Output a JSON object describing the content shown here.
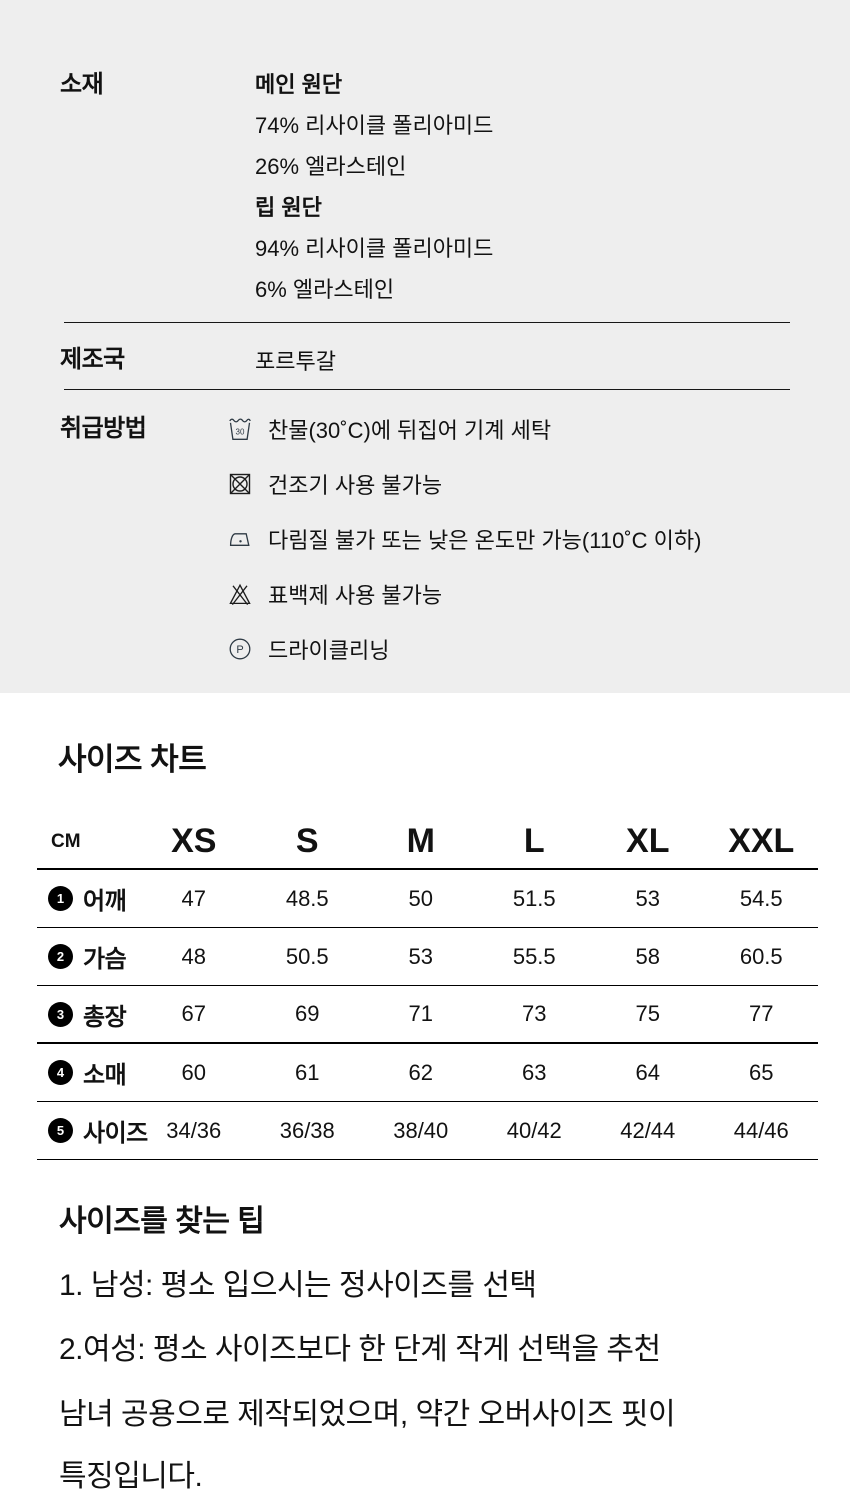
{
  "specs": {
    "material": {
      "label": "소재",
      "lines": [
        {
          "text": "메인 원단",
          "bold": true
        },
        {
          "text": "74% 리사이클 폴리아미드",
          "bold": false
        },
        {
          "text": "26% 엘라스테인",
          "bold": false
        },
        {
          "text": "립 원단",
          "bold": true
        },
        {
          "text": "94% 리사이클 폴리아미드",
          "bold": false
        },
        {
          "text": "6% 엘라스테인",
          "bold": false
        }
      ]
    },
    "origin": {
      "label": "제조국",
      "value": "포르투갈"
    },
    "care": {
      "label": "취급방법",
      "items": [
        {
          "icon": "machine-wash-30-icon",
          "text": "찬물(30˚C)에 뒤집어 기계 세탁"
        },
        {
          "icon": "no-tumble-dry-icon",
          "text": "건조기 사용 불가능"
        },
        {
          "icon": "iron-low-icon",
          "text": "다림질 불가 또는 낮은 온도만 가능(110˚C 이하)"
        },
        {
          "icon": "no-bleach-icon",
          "text": "표백제 사용 불가능"
        },
        {
          "icon": "dry-clean-icon",
          "text": "드라이클리닝"
        }
      ]
    }
  },
  "size_chart": {
    "title": "사이즈 차트",
    "unit": "CM",
    "columns": [
      "XS",
      "S",
      "M",
      "L",
      "XL",
      "XXL"
    ],
    "rows": [
      {
        "num": "1",
        "label": "어깨",
        "values": [
          "47",
          "48.5",
          "50",
          "51.5",
          "53",
          "54.5"
        ]
      },
      {
        "num": "2",
        "label": "가슴",
        "values": [
          "48",
          "50.5",
          "53",
          "55.5",
          "58",
          "60.5"
        ]
      },
      {
        "num": "3",
        "label": "총장",
        "values": [
          "67",
          "69",
          "71",
          "73",
          "75",
          "77"
        ]
      },
      {
        "num": "4",
        "label": "소매",
        "values": [
          "60",
          "61",
          "62",
          "63",
          "64",
          "65"
        ]
      },
      {
        "num": "5",
        "label": "사이즈",
        "values": [
          "34/36",
          "36/38",
          "38/40",
          "40/42",
          "42/44",
          "44/46"
        ]
      }
    ]
  },
  "tips": {
    "title": "사이즈를 찾는 팁",
    "lines": [
      "1. 남성: 평소 입으시는 정사이즈를 선택",
      "2.여성: 평소 사이즈보다 한 단계 작게 선택을 추천"
    ],
    "note_lines": [
      "남녀 공용으로 제작되었으며, 약간 오버사이즈 핏이",
      "특징입니다."
    ]
  },
  "colors": {
    "section_bg": "#eeeeee",
    "page_bg": "#ffffff",
    "text": "#121212",
    "table_line": "#000000",
    "icon_slate": "#2e3a44",
    "icon_dark": "#1c1c1c"
  }
}
